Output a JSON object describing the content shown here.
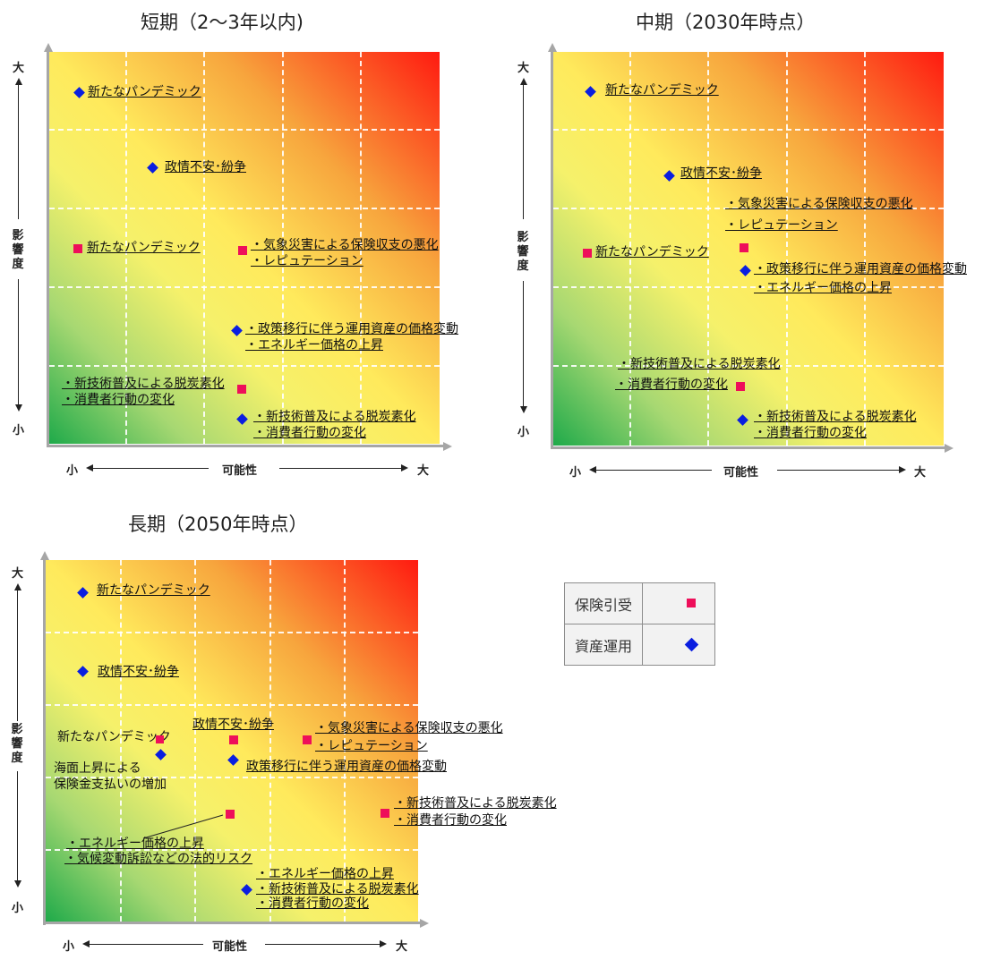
{
  "panels": {
    "short": {
      "title": "短期（2～3年以内)",
      "points": {
        "asset_pandemic": "新たなパンデミック",
        "asset_politics": "政情不安･紛争",
        "ins_pandemic": "新たなパンデミック",
        "ins_climate_1": "・気象災害による保険収支の悪化",
        "ins_climate_2": "・レピュテーション",
        "asset_policy_1": "・政策移行に伴う運用資産の価格変動",
        "asset_policy_2": "・エネルギー価格の上昇",
        "ins_tech_1": "・新技術普及による脱炭素化",
        "ins_tech_2": "・消費者行動の変化",
        "asset_tech_1": "・新技術普及による脱炭素化",
        "asset_tech_2": "・消費者行動の変化"
      }
    },
    "mid": {
      "title": "中期（2030年時点）",
      "points": {
        "asset_pandemic": "新たなパンデミック",
        "asset_politics": "政情不安･紛争",
        "ins_climate_1": "・気象災害による保険収支の悪化",
        "ins_climate_2": "・レピュテーション",
        "ins_pandemic": "新たなパンデミック",
        "asset_policy_1": "・政策移行に伴う運用資産の価格変動",
        "asset_policy_2": "・エネルギー価格の上昇",
        "ins_tech_1": "・新技術普及による脱炭素化",
        "ins_tech_2": "・消費者行動の変化",
        "asset_tech_1": "・新技術普及による脱炭素化",
        "asset_tech_2": "・消費者行動の変化"
      }
    },
    "long": {
      "title": "長期（2050年時点）",
      "points": {
        "asset_pandemic": "新たなパンデミック",
        "asset_politics": "政情不安･紛争",
        "ins_pandemic": "新たなパンデミック",
        "ins_politics": "政情不安･紛争",
        "ins_climate_1": "・気象災害による保険収支の悪化",
        "ins_climate_2": "・レピュテーション",
        "asset_sealevel_1": "海面上昇による",
        "asset_sealevel_2": "保険金支払いの増加",
        "asset_policy": "政策移行に伴う運用資産の価格変動",
        "ins_tech_1": "・新技術普及による脱炭素化",
        "ins_tech_2": "・消費者行動の変化",
        "ins_energy_1": "・エネルギー価格の上昇",
        "ins_energy_2": "・気候変動訴訟などの法的リスク",
        "asset_mix_1": "・エネルギー価格の上昇",
        "asset_mix_2": "・新技術普及による脱炭素化",
        "asset_mix_3": "・消費者行動の変化"
      }
    }
  },
  "axis": {
    "x_label": "可能性",
    "y_label_chars": [
      "影",
      "響",
      "度"
    ],
    "small": "小",
    "large": "大"
  },
  "legend": {
    "insurance_label": "保険引受",
    "asset_label": "資産運用"
  },
  "colors": {
    "insurance_marker": "#ee0f5a",
    "asset_marker": "#0a1ee0",
    "high_risk": "#ff1a10",
    "mid_risk": "#ffea5c",
    "low_risk": "#1faa4a"
  }
}
